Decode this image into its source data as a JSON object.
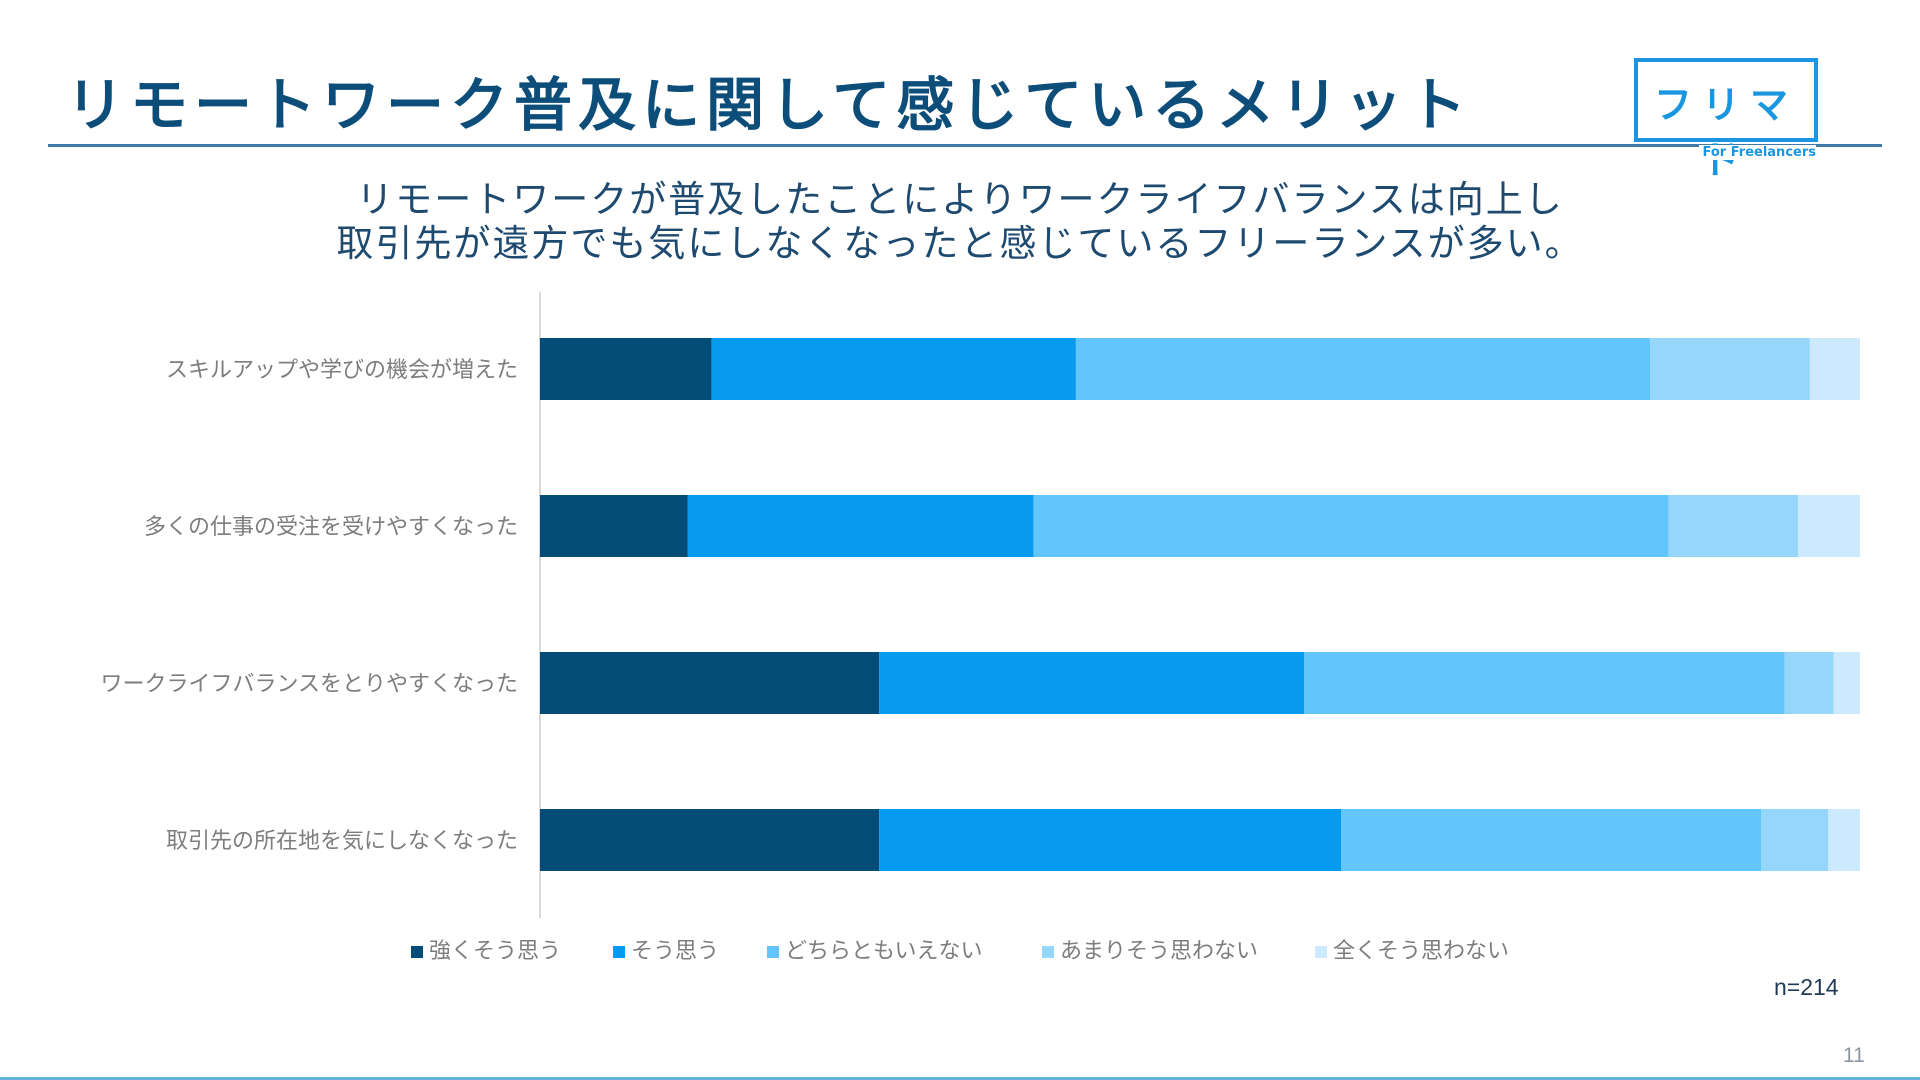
{
  "header": {
    "title": "リモートワーク普及に関して感じているメリット",
    "logo_text": "フリマド",
    "logo_subtext": "For Freelancers"
  },
  "subtitle": {
    "line1": "リモートワークが普及したことによりワークライフバランスは向上し",
    "line2": "取引先が遠方でも気にしなくなったと感じているフリーランスが多い。"
  },
  "chart_data": {
    "type": "bar",
    "orientation": "horizontal",
    "stacked": "100%",
    "categories": [
      "スキルアップや学びの機会が増えた",
      "多くの仕事の受注を受けやすくなった",
      "ワークライフバランスをとりやすくなった",
      "取引先の所在地を気にしなくなった"
    ],
    "series": [
      {
        "name": "強くそう思う",
        "color": "#034c77",
        "values": [
          13,
          11.2,
          25.7,
          25.7
        ]
      },
      {
        "name": "そう思う",
        "color": "#069bef",
        "values": [
          27.6,
          26.2,
          32.2,
          35.0
        ]
      },
      {
        "name": "どちらともいえない",
        "color": "#62c5fc",
        "values": [
          43.5,
          48.1,
          36.4,
          31.8
        ]
      },
      {
        "name": "あまりそう思わない",
        "color": "#97d6fb",
        "values": [
          12.1,
          9.8,
          3.7,
          5.1
        ]
      },
      {
        "name": "全くそう思わない",
        "color": "#cce9fd",
        "values": [
          3.8,
          4.7,
          2.0,
          2.4
        ]
      }
    ],
    "xlim": [
      0,
      100
    ],
    "grid": false,
    "legend_position": "bottom"
  },
  "footer": {
    "n_label": "n=214",
    "page_number": "11"
  }
}
